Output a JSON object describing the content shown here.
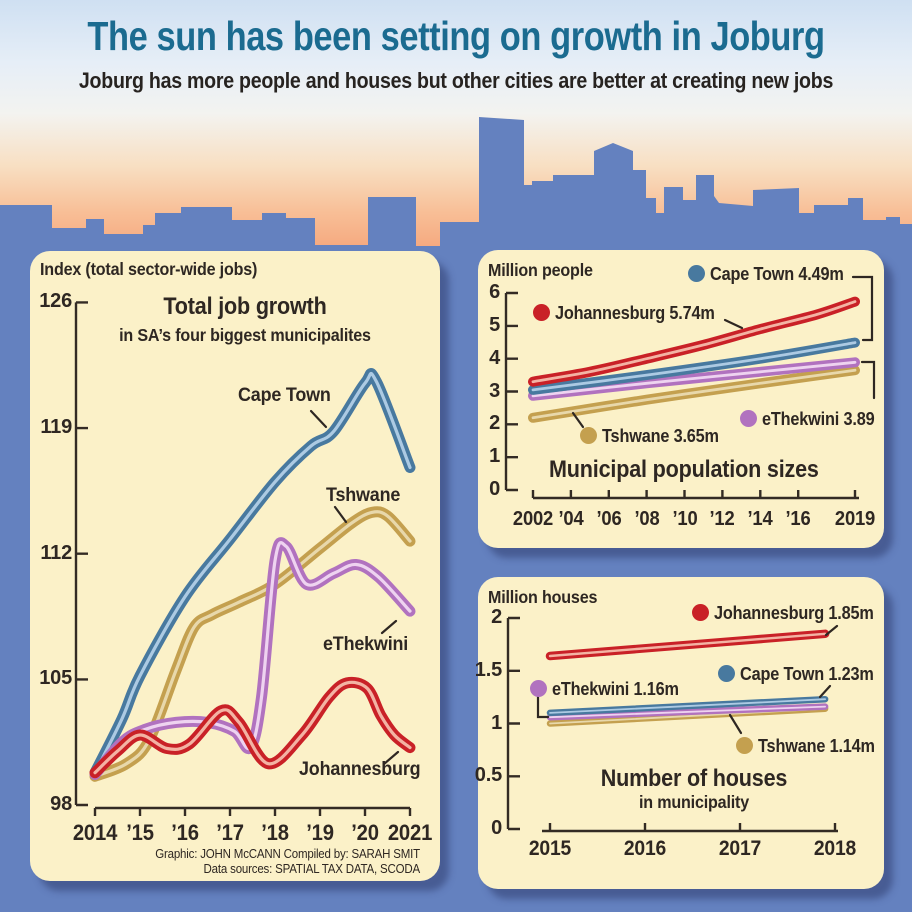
{
  "header": {
    "title": "The sun has been setting on growth in Joburg",
    "subtitle": "Joburg has more people and houses but other cities are better at creating new jobs"
  },
  "colors": {
    "background": "#6481bf",
    "panel": "#fbf1c8",
    "ink": "#2e2722",
    "title_text": "#1b6b90",
    "series": {
      "Johannesburg": {
        "main": "#c92127",
        "hi": "#f3b3a4"
      },
      "Cape Town": {
        "main": "#48799f",
        "hi": "#accae3"
      },
      "Tshwane": {
        "main": "#c4a04f",
        "hi": "#e8d8ab"
      },
      "eThekwini": {
        "main": "#b172bf",
        "hi": "#eed3f0"
      }
    }
  },
  "charts": {
    "jobs": {
      "unit_label": "Index (total sector-wide jobs)",
      "title": "Total job growth",
      "subtitle": "in SA’s four biggest municipalites",
      "y_tick_labels": [
        "126",
        "119",
        "112",
        "105",
        "98"
      ],
      "x_tick_labels": [
        "2014",
        "’15",
        "’16",
        "’17",
        "’18",
        "’19",
        "’20",
        "2021"
      ],
      "credits_line1": "Graphic: JOHN McCANN  Compiled by: SARAH SMIT",
      "credits_line2": "Data sources: SPATIAL TAX DATA, SCODA"
    },
    "population": {
      "unit_label": "Million people",
      "title": "Municipal population sizes",
      "y_tick_labels": [
        "6",
        "5",
        "4",
        "3",
        "2",
        "1",
        "0"
      ],
      "x_tick_labels": [
        "2002",
        "’04",
        "’06",
        "’08",
        "’10",
        "’12",
        "’14",
        "’16",
        "2019"
      ]
    },
    "houses": {
      "unit_label": "Million houses",
      "title": "Number of houses",
      "subtitle": "in municipality",
      "y_tick_labels": [
        "2",
        "1.5",
        "1",
        "0.5",
        "0"
      ],
      "x_tick_labels": [
        "2015",
        "2016",
        "2017",
        "2018"
      ]
    }
  },
  "chart_data": [
    {
      "type": "line",
      "title": "Total job growth",
      "subtitle": "in SA’s four biggest municipalites",
      "ylabel": "Index (total sector-wide jobs)",
      "xlim": [
        2014,
        2021
      ],
      "ylim": [
        98,
        126
      ],
      "yticks": [
        98,
        105,
        112,
        119,
        126
      ],
      "series": [
        {
          "name": "Cape Town",
          "points": [
            [
              2014,
              99.8
            ],
            [
              2014.6,
              102.8
            ],
            [
              2015,
              105.2
            ],
            [
              2016,
              109.6
            ],
            [
              2017,
              112.8
            ],
            [
              2018,
              116.0
            ],
            [
              2018.8,
              118.0
            ],
            [
              2019.3,
              118.8
            ],
            [
              2020,
              121.5
            ],
            [
              2020.25,
              121.6
            ],
            [
              2021,
              116.8
            ]
          ]
        },
        {
          "name": "Tshwane",
          "points": [
            [
              2014,
              99.6
            ],
            [
              2014.7,
              100.3
            ],
            [
              2015.2,
              101.6
            ],
            [
              2015.8,
              105.5
            ],
            [
              2016.2,
              107.9
            ],
            [
              2016.6,
              108.6
            ],
            [
              2017.2,
              109.3
            ],
            [
              2018,
              110.3
            ],
            [
              2019,
              112.3
            ],
            [
              2019.7,
              113.7
            ],
            [
              2020.15,
              114.3
            ],
            [
              2020.5,
              114.1
            ],
            [
              2021,
              112.7
            ]
          ]
        },
        {
          "name": "eThekwini",
          "points": [
            [
              2014,
              99.7
            ],
            [
              2014.6,
              101.5
            ],
            [
              2015.1,
              102.2
            ],
            [
              2015.8,
              102.6
            ],
            [
              2016.5,
              102.6
            ],
            [
              2017.1,
              102.1
            ],
            [
              2017.45,
              101.2
            ],
            [
              2017.7,
              104.0
            ],
            [
              2018.0,
              111.6
            ],
            [
              2018.25,
              112.4
            ],
            [
              2018.7,
              110.3
            ],
            [
              2019.3,
              110.9
            ],
            [
              2019.8,
              111.4
            ],
            [
              2020.3,
              110.7
            ],
            [
              2021,
              108.8
            ]
          ]
        },
        {
          "name": "Johannesburg",
          "points": [
            [
              2014,
              99.8
            ],
            [
              2014.5,
              101.0
            ],
            [
              2015,
              101.9
            ],
            [
              2015.6,
              101.15
            ],
            [
              2016.1,
              101.4
            ],
            [
              2016.8,
              103.25
            ],
            [
              2017.2,
              102.6
            ],
            [
              2017.85,
              100.3
            ],
            [
              2018.6,
              101.9
            ],
            [
              2019.2,
              104.0
            ],
            [
              2019.6,
              104.8
            ],
            [
              2020.05,
              104.5
            ],
            [
              2020.35,
              103.0
            ],
            [
              2020.65,
              101.9
            ],
            [
              2021,
              101.2
            ]
          ]
        }
      ]
    },
    {
      "type": "line",
      "title": "Municipal population sizes",
      "ylabel": "Million people",
      "xlim": [
        2002,
        2019
      ],
      "ylim": [
        0,
        6
      ],
      "series": [
        {
          "name": "Johannesburg",
          "end_label": "Johannesburg 5.74m",
          "end_value": 5.74,
          "points": [
            [
              2002,
              3.3
            ],
            [
              2005,
              3.6
            ],
            [
              2008,
              4.0
            ],
            [
              2011,
              4.42
            ],
            [
              2014,
              4.9
            ],
            [
              2017,
              5.35
            ],
            [
              2019,
              5.74
            ]
          ]
        },
        {
          "name": "Cape Town",
          "end_label": "Cape Town 4.49m",
          "end_value": 4.49,
          "points": [
            [
              2002,
              3.05
            ],
            [
              2008,
              3.5
            ],
            [
              2014,
              4.0
            ],
            [
              2019,
              4.49
            ]
          ]
        },
        {
          "name": "eThekwini",
          "end_label": "eThekwini 3.89",
          "end_value": 3.89,
          "points": [
            [
              2002,
              2.87
            ],
            [
              2008,
              3.25
            ],
            [
              2014,
              3.6
            ],
            [
              2019,
              3.89
            ]
          ]
        },
        {
          "name": "Tshwane",
          "end_label": "Tshwane 3.65m",
          "end_value": 3.65,
          "points": [
            [
              2002,
              2.2
            ],
            [
              2008,
              2.75
            ],
            [
              2014,
              3.25
            ],
            [
              2019,
              3.65
            ]
          ]
        }
      ]
    },
    {
      "type": "line",
      "title": "Number of houses",
      "subtitle": "in municipality",
      "ylabel": "Million houses",
      "xlim": [
        2015,
        2018
      ],
      "ylim": [
        0,
        2
      ],
      "series": [
        {
          "name": "Johannesburg",
          "end_label": "Johannesburg 1.85m",
          "end_value": 1.85,
          "points": [
            [
              2015,
              1.64
            ],
            [
              2018,
              1.85
            ]
          ]
        },
        {
          "name": "Cape Town",
          "end_label": "Cape Town 1.23m",
          "end_value": 1.23,
          "points": [
            [
              2015,
              1.1
            ],
            [
              2018,
              1.23
            ]
          ]
        },
        {
          "name": "eThekwini",
          "end_label": "eThekwini 1.16m",
          "end_value": 1.16,
          "points": [
            [
              2015,
              1.06
            ],
            [
              2018,
              1.16
            ]
          ]
        },
        {
          "name": "Tshwane",
          "end_label": "Tshwane 1.14m",
          "end_value": 1.14,
          "points": [
            [
              2015,
              1.0
            ],
            [
              2018,
              1.14
            ]
          ]
        }
      ]
    }
  ]
}
